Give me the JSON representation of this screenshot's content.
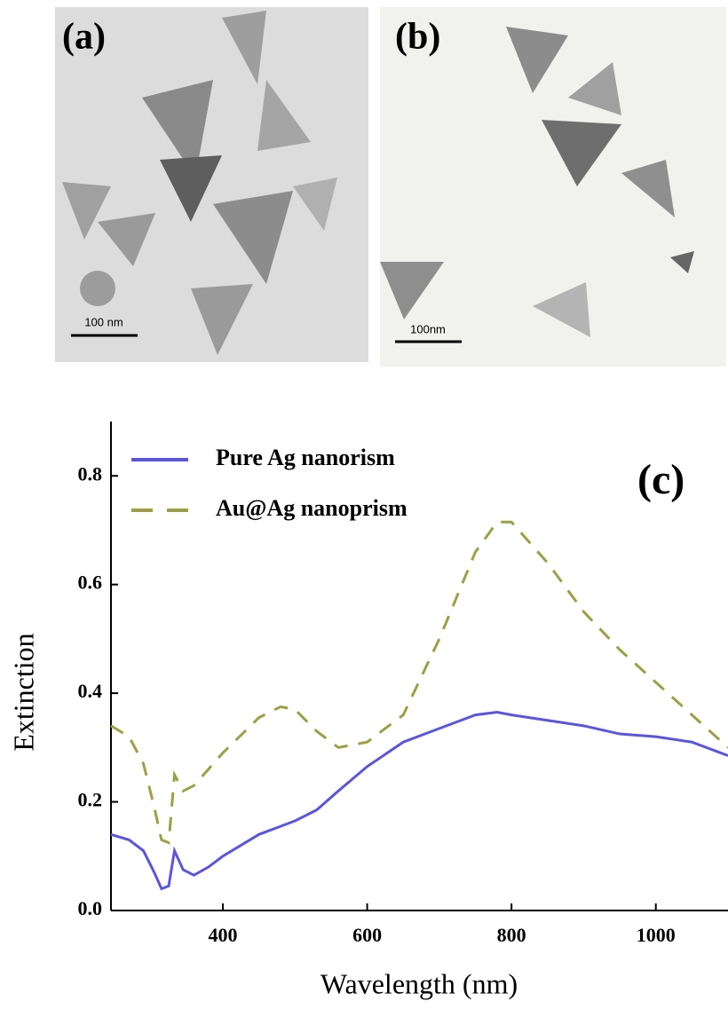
{
  "panels": [
    {
      "label": "(a)",
      "scale_bar": "100 nm"
    },
    {
      "label": "(b)",
      "scale_bar": "100nm"
    }
  ],
  "chart_data": {
    "type": "line",
    "annotation": "(c)",
    "xlabel": "Wavelength (nm)",
    "ylabel": "Extinction",
    "x": [
      245,
      270,
      290,
      305,
      315,
      325,
      333,
      345,
      360,
      380,
      400,
      450,
      480,
      500,
      530,
      560,
      600,
      650,
      700,
      750,
      780,
      800,
      850,
      900,
      950,
      1000,
      1050,
      1100
    ],
    "series": [
      {
        "name": "Pure Ag nanorism",
        "color": "#5a55e0",
        "dash": false,
        "values": [
          0.14,
          0.13,
          0.11,
          0.07,
          0.04,
          0.045,
          0.11,
          0.075,
          0.065,
          0.08,
          0.1,
          0.14,
          0.155,
          0.165,
          0.185,
          0.22,
          0.265,
          0.31,
          0.335,
          0.36,
          0.365,
          0.36,
          0.35,
          0.34,
          0.325,
          0.32,
          0.31,
          0.285
        ]
      },
      {
        "name": "Au@Ag nanoprism",
        "color": "#9ca044",
        "dash": true,
        "values": [
          0.34,
          0.32,
          0.27,
          0.19,
          0.13,
          0.125,
          0.25,
          0.22,
          0.23,
          0.26,
          0.29,
          0.355,
          0.375,
          0.37,
          0.33,
          0.3,
          0.31,
          0.36,
          0.5,
          0.66,
          0.715,
          0.715,
          0.64,
          0.55,
          0.48,
          0.42,
          0.36,
          0.3
        ]
      }
    ],
    "xlim": [
      245,
      1100
    ],
    "ylim": [
      0,
      0.9
    ],
    "xticks": [
      400,
      600,
      800,
      1000
    ],
    "yticks": [
      {
        "value": 0,
        "label": "0.0"
      },
      0.2,
      0.4,
      0.6,
      0.8
    ]
  }
}
